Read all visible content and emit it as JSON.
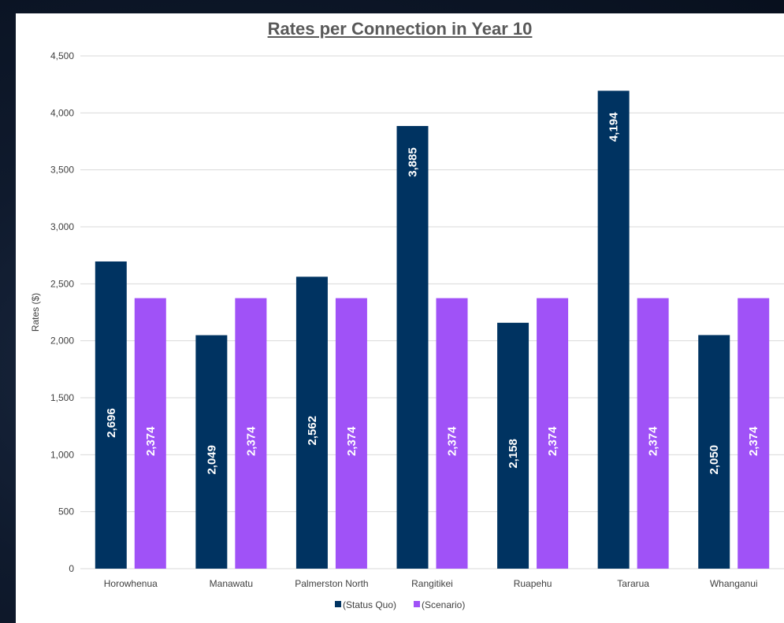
{
  "chart_data": {
    "type": "bar",
    "title": "Rates per Connection in Year 10",
    "xlabel": "",
    "ylabel": "Rates ($)",
    "ylim": [
      0,
      4500
    ],
    "yticks": [
      "0",
      "500",
      "1,000",
      "1,500",
      "2,000",
      "2,500",
      "3,000",
      "3,500",
      "4,000",
      "4,500"
    ],
    "categories": [
      "Horowhenua",
      "Manawatu",
      "Palmerston North",
      "Rangitikei",
      "Ruapehu",
      "Tararua",
      "Whanganui"
    ],
    "series": [
      {
        "name": "(Status Quo)",
        "color": "#003361",
        "values": [
          2696,
          2049,
          2562,
          3885,
          2158,
          4194,
          2050
        ],
        "labels": [
          "2,696",
          "2,049",
          "2,562",
          "3,885",
          "2,158",
          "4,194",
          "2,050"
        ]
      },
      {
        "name": "(Scenario)",
        "color": "#a052f7",
        "values": [
          2374,
          2374,
          2374,
          2374,
          2374,
          2374,
          2374
        ],
        "labels": [
          "2,374",
          "2,374",
          "2,374",
          "2,374",
          "2,374",
          "2,374",
          "2,374"
        ]
      }
    ],
    "grid": true,
    "legend": "bottom"
  }
}
